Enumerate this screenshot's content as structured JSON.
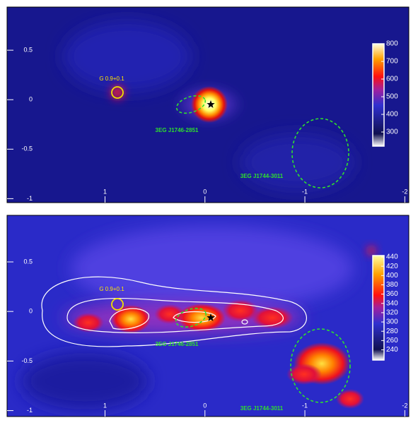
{
  "chart_data": [
    {
      "type": "image",
      "xlim": [
        1.98,
        -2.04
      ],
      "xticks": [
        1,
        0,
        -1,
        -2
      ],
      "ylim": [
        0.936,
        -1.04
      ],
      "yticks": [
        0.5,
        0,
        -0.5,
        -1
      ],
      "colorbar_lim": [
        220,
        800
      ],
      "colorbar_ticks": [
        300,
        400,
        500,
        600,
        700,
        800
      ],
      "annotations": [
        "G 0.9+0.1",
        "3EG J1746-2851",
        "3EG J1744-3011"
      ]
    },
    {
      "type": "image",
      "xlim": [
        1.98,
        -2.04
      ],
      "xticks": [
        1,
        0,
        -1,
        -2
      ],
      "ylim": [
        0.97,
        -1.06
      ],
      "yticks": [
        0.5,
        0,
        -0.5,
        -1
      ],
      "colorbar_lim": [
        218,
        443
      ],
      "colorbar_ticks": [
        240,
        260,
        280,
        300,
        320,
        340,
        360,
        380,
        400,
        420,
        440
      ],
      "annotations": [
        "G 0.9+0.1",
        "3EG J1746-2851",
        "3EG J1744-3011"
      ]
    }
  ]
}
